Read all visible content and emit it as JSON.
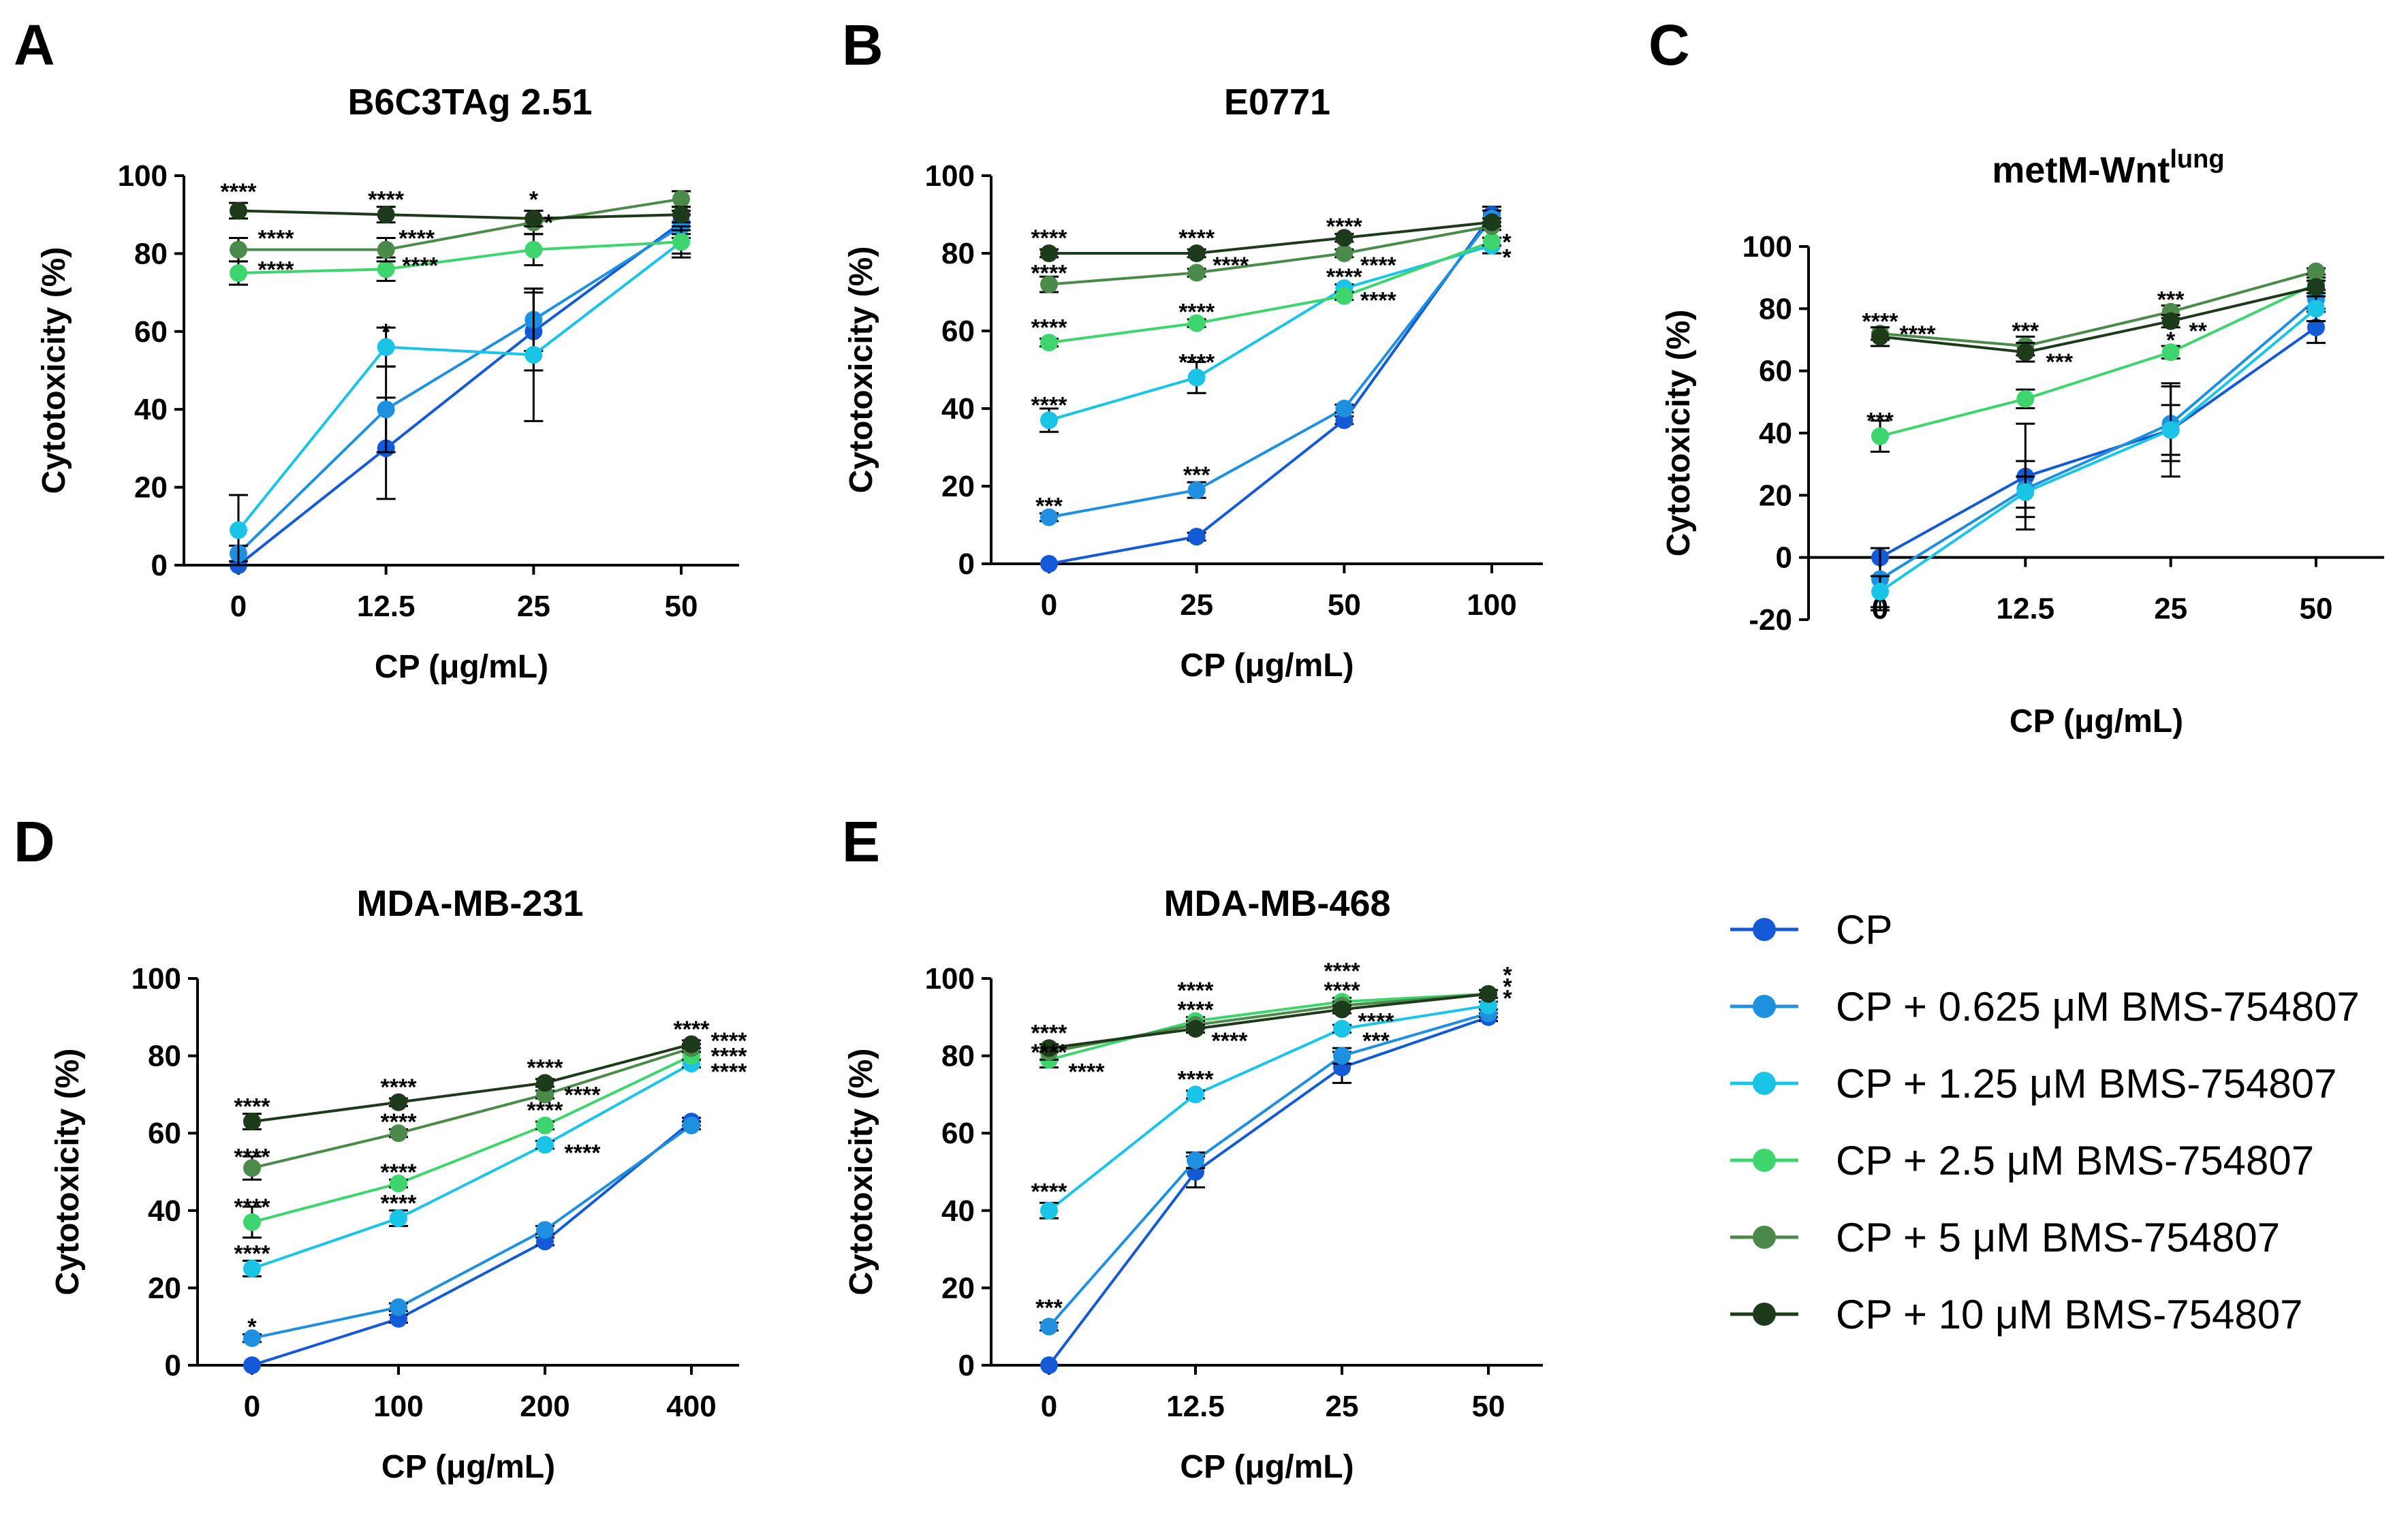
{
  "colors": {
    "CP": "#1459d6",
    "CP_0625": "#1f8fe0",
    "CP_125": "#19c4e6",
    "CP_25": "#3ed46e",
    "CP_5": "#4b8a4a",
    "CP_10": "#1d3a1a"
  },
  "legend": [
    {
      "key": "CP",
      "label": "CP"
    },
    {
      "key": "CP_0625",
      "label": "CP + 0.625 μM BMS-754807"
    },
    {
      "key": "CP_125",
      "label": "CP + 1.25 μM BMS-754807"
    },
    {
      "key": "CP_25",
      "label": "CP + 2.5 μM BMS-754807"
    },
    {
      "key": "CP_5",
      "label": "CP + 5 μM BMS-754807"
    },
    {
      "key": "CP_10",
      "label": "CP + 10 μM BMS-754807"
    }
  ],
  "chart_data": [
    {
      "letter": "A",
      "title": "B6C3TAg 2.51",
      "title_sup": "",
      "type": "line",
      "xlabel": "CP (μg/mL)",
      "ylabel": "Cytotoxicity (%)",
      "categories": [
        "0",
        "12.5",
        "25",
        "50"
      ],
      "ylim": [
        0,
        100
      ],
      "yticks": [
        "0",
        "20",
        "40",
        "60",
        "80",
        "100"
      ],
      "series": [
        {
          "key": "CP",
          "values": [
            0,
            30,
            60,
            88
          ],
          "err": [
            0,
            13,
            10,
            3
          ]
        },
        {
          "key": "CP_0625",
          "values": [
            3,
            40,
            63,
            87
          ],
          "err": [
            2,
            11,
            8,
            3
          ]
        },
        {
          "key": "CP_125",
          "values": [
            9,
            56,
            54,
            83
          ],
          "err": [
            9,
            5,
            17,
            4
          ]
        },
        {
          "key": "CP_25",
          "values": [
            75,
            76,
            81,
            83
          ],
          "err": [
            3,
            3,
            4,
            3
          ]
        },
        {
          "key": "CP_5",
          "values": [
            81,
            81,
            88,
            94
          ],
          "err": [
            3,
            3,
            3,
            2
          ]
        },
        {
          "key": "CP_10",
          "values": [
            91,
            90,
            89,
            90
          ],
          "err": [
            2,
            2,
            2,
            2
          ]
        }
      ],
      "annotations": [
        {
          "text": "****",
          "cat": 0,
          "y": 96,
          "dx": 0
        },
        {
          "text": "****",
          "cat": 0,
          "y": 84,
          "dx": 55
        },
        {
          "text": "****",
          "cat": 0,
          "y": 76,
          "dx": 55
        },
        {
          "text": "****",
          "cat": 1,
          "y": 94,
          "dx": 0
        },
        {
          "text": "****",
          "cat": 1,
          "y": 84,
          "dx": 45
        },
        {
          "text": "****",
          "cat": 1,
          "y": 77,
          "dx": 50
        },
        {
          "text": "*",
          "cat": 1,
          "y": 60,
          "dx": 0
        },
        {
          "text": "*",
          "cat": 2,
          "y": 94,
          "dx": 0
        },
        {
          "text": "*",
          "cat": 2,
          "y": 88,
          "dx": 22
        }
      ]
    },
    {
      "letter": "B",
      "title": "E0771",
      "title_sup": "",
      "type": "line",
      "xlabel": "CP (μg/mL)",
      "ylabel": "Cytotoxicity (%)",
      "categories": [
        "0",
        "25",
        "50",
        "100"
      ],
      "ylim": [
        0,
        100
      ],
      "yticks": [
        "0",
        "20",
        "40",
        "60",
        "80",
        "100"
      ],
      "series": [
        {
          "key": "CP",
          "values": [
            0,
            7,
            37,
            90
          ],
          "err": [
            0,
            1,
            1,
            2
          ]
        },
        {
          "key": "CP_0625",
          "values": [
            12,
            19,
            40,
            89
          ],
          "err": [
            1,
            2,
            1,
            2
          ]
        },
        {
          "key": "CP_125",
          "values": [
            37,
            48,
            71,
            82
          ],
          "err": [
            3,
            4,
            1,
            2
          ]
        },
        {
          "key": "CP_25",
          "values": [
            57,
            62,
            69,
            83
          ],
          "err": [
            1,
            1,
            1,
            1
          ]
        },
        {
          "key": "CP_5",
          "values": [
            72,
            75,
            80,
            87
          ],
          "err": [
            2,
            1,
            1,
            1
          ]
        },
        {
          "key": "CP_10",
          "values": [
            80,
            80,
            84,
            88
          ],
          "err": [
            1,
            1,
            1,
            1
          ]
        }
      ],
      "annotations": [
        {
          "text": "****",
          "cat": 0,
          "y": 84,
          "dx": 0
        },
        {
          "text": "****",
          "cat": 0,
          "y": 75,
          "dx": 0
        },
        {
          "text": "****",
          "cat": 0,
          "y": 61,
          "dx": 0
        },
        {
          "text": "****",
          "cat": 0,
          "y": 41,
          "dx": 0
        },
        {
          "text": "***",
          "cat": 0,
          "y": 15,
          "dx": 0
        },
        {
          "text": "****",
          "cat": 1,
          "y": 84,
          "dx": 0
        },
        {
          "text": "****",
          "cat": 1,
          "y": 77,
          "dx": 50
        },
        {
          "text": "****",
          "cat": 1,
          "y": 65,
          "dx": 0
        },
        {
          "text": "****",
          "cat": 1,
          "y": 52,
          "dx": 0
        },
        {
          "text": "***",
          "cat": 1,
          "y": 23,
          "dx": 0
        },
        {
          "text": "****",
          "cat": 2,
          "y": 87,
          "dx": 0
        },
        {
          "text": "****",
          "cat": 2,
          "y": 77,
          "dx": 50
        },
        {
          "text": "****",
          "cat": 2,
          "y": 74,
          "dx": 0
        },
        {
          "text": "****",
          "cat": 2,
          "y": 68,
          "dx": 50
        },
        {
          "text": "*",
          "cat": 3,
          "y": 83,
          "dx": 22
        },
        {
          "text": "*",
          "cat": 3,
          "y": 79,
          "dx": 22
        }
      ]
    },
    {
      "letter": "C",
      "title": "metM-Wnt",
      "title_sup": "lung",
      "type": "line",
      "xlabel": "CP (μg/mL)",
      "ylabel": "Cytotoxicity (%)",
      "categories": [
        "0",
        "12.5",
        "25",
        "50"
      ],
      "ylim": [
        -20,
        100
      ],
      "yticks": [
        "-20",
        "0",
        "20",
        "40",
        "60",
        "80",
        "100"
      ],
      "series": [
        {
          "key": "CP",
          "values": [
            0,
            26,
            41,
            74
          ],
          "err": [
            0,
            17,
            15,
            5
          ]
        },
        {
          "key": "CP_0625",
          "values": [
            -7,
            22,
            43,
            83
          ],
          "err": [
            10,
            9,
            12,
            3
          ]
        },
        {
          "key": "CP_125",
          "values": [
            -11,
            21,
            41,
            80
          ],
          "err": [
            5,
            5,
            8,
            4
          ]
        },
        {
          "key": "CP_25",
          "values": [
            39,
            51,
            66,
            88
          ],
          "err": [
            5,
            3,
            2,
            2
          ]
        },
        {
          "key": "CP_5",
          "values": [
            72,
            68,
            79,
            92
          ],
          "err": [
            2,
            3,
            2,
            1
          ]
        },
        {
          "key": "CP_10",
          "values": [
            71,
            66,
            76,
            87
          ],
          "err": [
            3,
            3,
            2,
            2
          ]
        }
      ],
      "annotations": [
        {
          "text": "****",
          "cat": 0,
          "y": 76,
          "dx": 0
        },
        {
          "text": "****",
          "cat": 0,
          "y": 72,
          "dx": 55
        },
        {
          "text": "***",
          "cat": 0,
          "y": 44,
          "dx": 0
        },
        {
          "text": "***",
          "cat": 1,
          "y": 73,
          "dx": 0
        },
        {
          "text": "***",
          "cat": 1,
          "y": 63,
          "dx": 50
        },
        {
          "text": "***",
          "cat": 2,
          "y": 83,
          "dx": 0
        },
        {
          "text": "**",
          "cat": 2,
          "y": 73,
          "dx": 40
        },
        {
          "text": "*",
          "cat": 2,
          "y": 70,
          "dx": 0
        }
      ]
    },
    {
      "letter": "D",
      "title": "MDA-MB-231",
      "title_sup": "",
      "type": "line",
      "xlabel": "CP (μg/mL)",
      "ylabel": "Cytotoxicity (%)",
      "categories": [
        "0",
        "100",
        "200",
        "400"
      ],
      "ylim": [
        0,
        100
      ],
      "yticks": [
        "0",
        "20",
        "40",
        "60",
        "80",
        "100"
      ],
      "series": [
        {
          "key": "CP",
          "values": [
            0,
            12,
            32,
            63
          ],
          "err": [
            0,
            1,
            1,
            1
          ]
        },
        {
          "key": "CP_0625",
          "values": [
            7,
            15,
            35,
            62
          ],
          "err": [
            1,
            1,
            1,
            1
          ]
        },
        {
          "key": "CP_125",
          "values": [
            25,
            38,
            57,
            78
          ],
          "err": [
            2,
            2,
            1,
            1
          ]
        },
        {
          "key": "CP_25",
          "values": [
            37,
            47,
            62,
            80
          ],
          "err": [
            4,
            1,
            1,
            1
          ]
        },
        {
          "key": "CP_5",
          "values": [
            51,
            60,
            70,
            82
          ],
          "err": [
            3,
            1,
            1,
            1
          ]
        },
        {
          "key": "CP_10",
          "values": [
            63,
            68,
            73,
            83
          ],
          "err": [
            2,
            1,
            1,
            1
          ]
        }
      ],
      "annotations": [
        {
          "text": "****",
          "cat": 0,
          "y": 67,
          "dx": 0
        },
        {
          "text": "****",
          "cat": 0,
          "y": 54,
          "dx": 0
        },
        {
          "text": "****",
          "cat": 0,
          "y": 41,
          "dx": 0
        },
        {
          "text": "****",
          "cat": 0,
          "y": 29,
          "dx": 0
        },
        {
          "text": "*",
          "cat": 0,
          "y": 10,
          "dx": 0
        },
        {
          "text": "****",
          "cat": 1,
          "y": 72,
          "dx": 0
        },
        {
          "text": "****",
          "cat": 1,
          "y": 63,
          "dx": 0
        },
        {
          "text": "****",
          "cat": 1,
          "y": 50,
          "dx": 0
        },
        {
          "text": "****",
          "cat": 1,
          "y": 42,
          "dx": 0
        },
        {
          "text": "****",
          "cat": 2,
          "y": 77,
          "dx": 0
        },
        {
          "text": "****",
          "cat": 2,
          "y": 70,
          "dx": 55
        },
        {
          "text": "****",
          "cat": 2,
          "y": 66,
          "dx": 0
        },
        {
          "text": "****",
          "cat": 2,
          "y": 55,
          "dx": 55
        },
        {
          "text": "****",
          "cat": 3,
          "y": 87,
          "dx": 0
        },
        {
          "text": "****",
          "cat": 3,
          "y": 84,
          "dx": 55
        },
        {
          "text": "****",
          "cat": 3,
          "y": 80,
          "dx": 55
        },
        {
          "text": "****",
          "cat": 3,
          "y": 76,
          "dx": 55
        }
      ]
    },
    {
      "letter": "E",
      "title": "MDA-MB-468",
      "title_sup": "",
      "type": "line",
      "xlabel": "CP (μg/mL)",
      "ylabel": "Cytotoxicity (%)",
      "categories": [
        "0",
        "12.5",
        "25",
        "50"
      ],
      "ylim": [
        0,
        100
      ],
      "yticks": [
        "0",
        "20",
        "40",
        "60",
        "80",
        "100"
      ],
      "series": [
        {
          "key": "CP",
          "values": [
            0,
            50,
            77,
            90
          ],
          "err": [
            0,
            4,
            4,
            1
          ]
        },
        {
          "key": "CP_0625",
          "values": [
            10,
            53,
            80,
            91
          ],
          "err": [
            1,
            2,
            2,
            1
          ]
        },
        {
          "key": "CP_125",
          "values": [
            40,
            70,
            87,
            93
          ],
          "err": [
            2,
            1,
            1,
            1
          ]
        },
        {
          "key": "CP_25",
          "values": [
            79,
            89,
            94,
            96
          ],
          "err": [
            2,
            1,
            1,
            1
          ]
        },
        {
          "key": "CP_5",
          "values": [
            81,
            88,
            93,
            96
          ],
          "err": [
            2,
            1,
            1,
            1
          ]
        },
        {
          "key": "CP_10",
          "values": [
            82,
            87,
            92,
            96
          ],
          "err": [
            1,
            1,
            1,
            1
          ]
        }
      ],
      "annotations": [
        {
          "text": "****",
          "cat": 0,
          "y": 86,
          "dx": 0
        },
        {
          "text": "****",
          "cat": 0,
          "y": 81,
          "dx": 0
        },
        {
          "text": "****",
          "cat": 0,
          "y": 76,
          "dx": 55
        },
        {
          "text": "****",
          "cat": 0,
          "y": 45,
          "dx": 0
        },
        {
          "text": "***",
          "cat": 0,
          "y": 15,
          "dx": 0
        },
        {
          "text": "****",
          "cat": 1,
          "y": 97,
          "dx": 0
        },
        {
          "text": "****",
          "cat": 1,
          "y": 92,
          "dx": 0
        },
        {
          "text": "****",
          "cat": 1,
          "y": 84,
          "dx": 50
        },
        {
          "text": "****",
          "cat": 1,
          "y": 74,
          "dx": 0
        },
        {
          "text": "****",
          "cat": 2,
          "y": 102,
          "dx": 0
        },
        {
          "text": "****",
          "cat": 2,
          "y": 97,
          "dx": 0
        },
        {
          "text": "****",
          "cat": 2,
          "y": 89,
          "dx": 50
        },
        {
          "text": "***",
          "cat": 2,
          "y": 84,
          "dx": 50
        },
        {
          "text": "*",
          "cat": 3,
          "y": 101,
          "dx": 28
        },
        {
          "text": "*",
          "cat": 3,
          "y": 98,
          "dx": 28
        },
        {
          "text": "*",
          "cat": 3,
          "y": 95,
          "dx": 28
        }
      ]
    }
  ]
}
